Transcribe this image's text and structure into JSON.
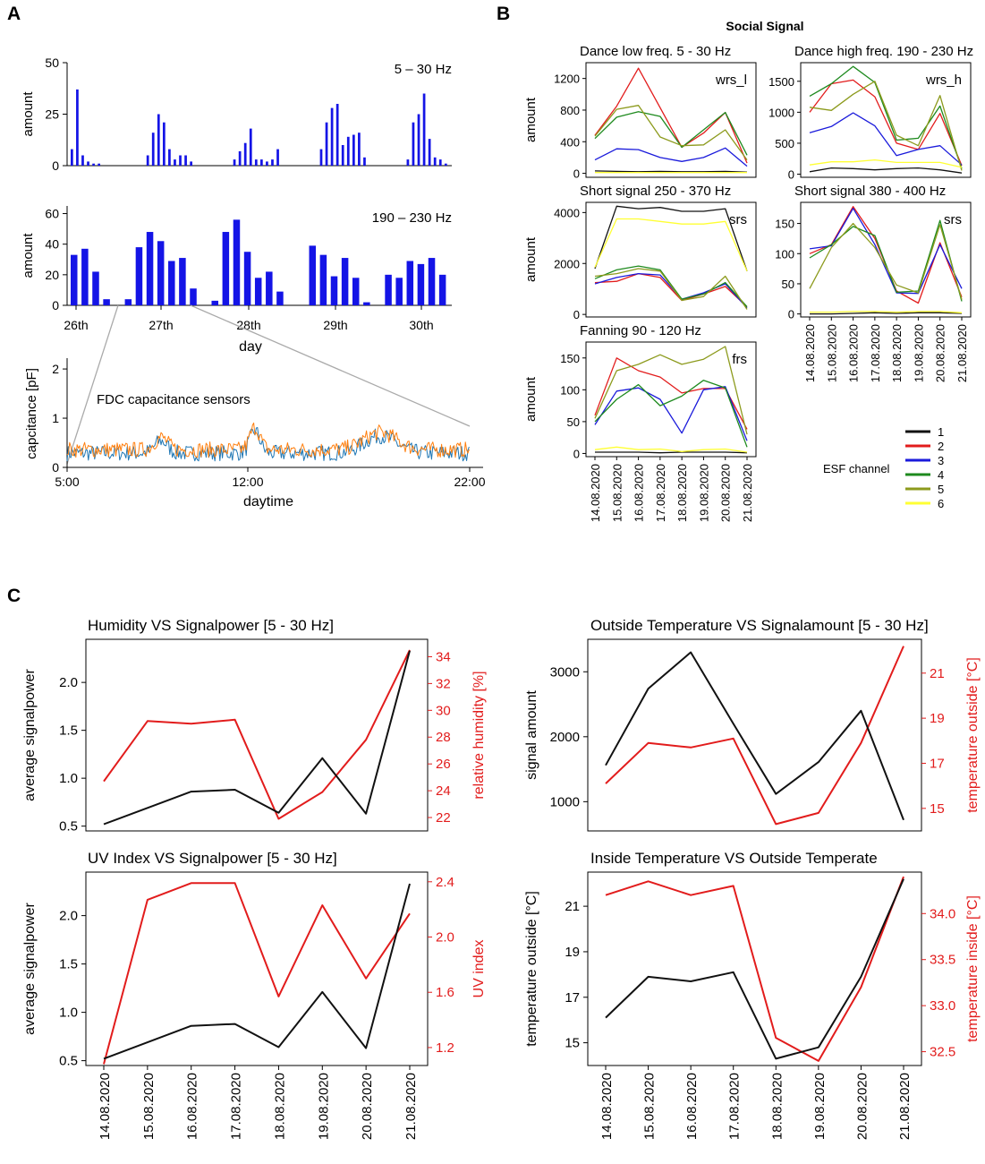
{
  "panel_labels": {
    "a": "A",
    "b": "B",
    "c": "C"
  },
  "colors": {
    "bar": "#1414e6",
    "sensor_blue": "#1f77b4",
    "sensor_orange": "#ff7f0e",
    "red": "#e21c1c",
    "black": "#111111",
    "grey": "#aaaaaa"
  },
  "chart_data": [
    {
      "id": "A1",
      "type": "bar",
      "title": "5 – 30 Hz",
      "ylabel": "amount",
      "ylim": [
        0,
        50
      ],
      "yticks": [
        "50",
        "25",
        "0"
      ],
      "values": [
        8,
        37,
        5,
        2,
        1,
        1,
        0,
        0,
        0,
        0,
        0,
        0,
        0,
        0,
        5,
        16,
        25,
        21,
        8,
        3,
        5,
        5,
        2,
        0,
        0,
        0,
        0,
        0,
        0,
        0,
        3,
        7,
        11,
        18,
        3,
        3,
        2,
        3,
        8,
        0,
        0,
        0,
        0,
        0,
        0,
        0,
        8,
        21,
        28,
        30,
        10,
        14,
        15,
        16,
        4,
        0,
        0,
        0,
        0,
        0,
        0,
        0,
        3,
        21,
        25,
        35,
        13,
        4,
        3,
        1
      ]
    },
    {
      "id": "A2",
      "type": "bar",
      "title": "190 – 230 Hz",
      "ylabel": "amount",
      "ylim": [
        0,
        65
      ],
      "yticks": [
        "60",
        "40",
        "20",
        "0"
      ],
      "x_ticks": [
        "26th",
        "27th",
        "28th",
        "29th",
        "30th"
      ],
      "xlabel": "day",
      "values": [
        33,
        37,
        22,
        4,
        0,
        4,
        38,
        48,
        42,
        29,
        31,
        11,
        0,
        3,
        48,
        56,
        35,
        18,
        22,
        9,
        0,
        0,
        39,
        33,
        19,
        31,
        18,
        2,
        0,
        20,
        18,
        29,
        27,
        31,
        20
      ]
    },
    {
      "id": "A3",
      "type": "line",
      "title": "FDC capacitance sensors",
      "ylabel": "capcitance [pF]",
      "xlabel": "daytime",
      "ylim": [
        0,
        2
      ],
      "yticks": [
        "2",
        "1",
        "0"
      ],
      "x_ticks": [
        "5:00",
        "12:00",
        "22:00"
      ]
    },
    {
      "id": "B",
      "type": "line",
      "title": "Social Signal",
      "dates": [
        "14.08.2020",
        "15.08.2020",
        "16.08.2020",
        "17.08.2020",
        "18.08.2020",
        "19.08.2020",
        "20.08.2020",
        "21.08.2020"
      ],
      "legend_title": "ESF channel",
      "legend": [
        {
          "name": "1",
          "color": "#111111"
        },
        {
          "name": "2",
          "color": "#e21c1c"
        },
        {
          "name": "3",
          "color": "#1a1adb"
        },
        {
          "name": "4",
          "color": "#1e8a1e"
        },
        {
          "name": "5",
          "color": "#8c9a1c"
        },
        {
          "name": "6",
          "color": "#ffff33"
        }
      ],
      "subplots": [
        {
          "title": "Dance low freq. 5 - 30 Hz",
          "tag": "wrs_l",
          "ylabel": "amount",
          "ylim": [
            -50,
            1400
          ],
          "yticks": [
            0,
            400,
            800,
            1200
          ],
          "series": [
            [
              30,
              25,
              20,
              25,
              20,
              20,
              25,
              15
            ],
            [
              480,
              850,
              1330,
              830,
              330,
              510,
              770,
              130
            ],
            [
              170,
              310,
              300,
              200,
              150,
              200,
              320,
              90
            ],
            [
              440,
              710,
              780,
              720,
              330,
              550,
              770,
              230
            ],
            [
              470,
              810,
              860,
              460,
              350,
              360,
              550,
              170
            ],
            [
              10,
              10,
              10,
              10,
              10,
              10,
              10,
              10
            ]
          ]
        },
        {
          "title": "Dance high freq. 190 - 230 Hz",
          "tag": "wrs_h",
          "ylabel": "",
          "ylim": [
            -50,
            1800
          ],
          "yticks": [
            0,
            500,
            1000,
            1500
          ],
          "series": [
            [
              40,
              100,
              90,
              70,
              90,
              100,
              70,
              20
            ],
            [
              1000,
              1460,
              1520,
              1250,
              500,
              400,
              980,
              140
            ],
            [
              670,
              770,
              990,
              780,
              300,
              400,
              460,
              150
            ],
            [
              1260,
              1460,
              1740,
              1480,
              550,
              580,
              1100,
              90
            ],
            [
              1080,
              1030,
              1290,
              1500,
              630,
              460,
              1270,
              60
            ],
            [
              150,
              200,
              200,
              230,
              190,
              190,
              190,
              110
            ]
          ]
        },
        {
          "title": "Short signal 250 - 370 Hz",
          "tag": "srs",
          "ylabel": "amount",
          "ylim": [
            -100,
            4400
          ],
          "yticks": [
            0,
            2000,
            4000
          ],
          "series": [
            [
              1800,
              4250,
              4150,
              4200,
              4050,
              4050,
              4150,
              1700
            ],
            [
              1250,
              1300,
              1600,
              1450,
              550,
              800,
              1100,
              300
            ],
            [
              1200,
              1450,
              1600,
              1550,
              600,
              850,
              1200,
              250
            ],
            [
              1400,
              1750,
              1900,
              1750,
              600,
              800,
              1250,
              300
            ],
            [
              1500,
              1600,
              1800,
              1700,
              550,
              700,
              1500,
              200
            ],
            [
              1850,
              3750,
              3750,
              3650,
              3550,
              3550,
              3650,
              1700
            ]
          ]
        },
        {
          "title": "Short signal 380 - 400 Hz",
          "tag": "srs",
          "ylabel": "",
          "ylim": [
            -5,
            185
          ],
          "yticks": [
            0,
            50,
            100,
            150
          ],
          "series": [
            [
              0,
              0,
              1,
              2,
              1,
              2,
              2,
              1
            ],
            [
              100,
              115,
              178,
              125,
              38,
              18,
              118,
              28
            ],
            [
              108,
              113,
              175,
              115,
              35,
              34,
              115,
              42
            ],
            [
              93,
              115,
              145,
              130,
              36,
              38,
              155,
              21
            ],
            [
              42,
              110,
              150,
              110,
              48,
              35,
              148,
              24
            ],
            [
              3,
              3,
              4,
              4,
              3,
              4,
              4,
              2
            ]
          ]
        },
        {
          "title": "Fanning 90 - 120 Hz",
          "tag": "frs",
          "ylabel": "amount",
          "ylim": [
            -5,
            175
          ],
          "yticks": [
            0,
            50,
            100,
            150
          ],
          "series": [
            [
              2,
              2,
              2,
              1,
              2,
              2,
              2,
              1
            ],
            [
              60,
              150,
              130,
              120,
              95,
              102,
              102,
              38
            ],
            [
              45,
              98,
              103,
              85,
              32,
              100,
              105,
              20
            ],
            [
              50,
              85,
              108,
              75,
              90,
              115,
              103,
              10
            ],
            [
              55,
              130,
              140,
              155,
              140,
              148,
              168,
              30
            ],
            [
              6,
              10,
              6,
              7,
              3,
              6,
              7,
              2
            ]
          ]
        }
      ]
    },
    {
      "id": "C1",
      "type": "line",
      "title": "Humidity VS Signalpower [5 - 30 Hz]",
      "ylabel": "average signalpower",
      "ylabel_right": "relative humidity [%]",
      "ylim": [
        0.45,
        2.45
      ],
      "yticks": [
        "0.5",
        "1.0",
        "1.5",
        "2.0"
      ],
      "ylim_right": [
        21,
        35.3
      ],
      "yticks_right": [
        "22",
        "24",
        "26",
        "28",
        "30",
        "32",
        "34"
      ],
      "left_series": [
        0.52,
        0.69,
        0.86,
        0.88,
        0.64,
        1.21,
        0.63,
        2.33
      ],
      "right_series": [
        24.7,
        29.2,
        29.0,
        29.3,
        21.9,
        23.9,
        27.8,
        34.5
      ]
    },
    {
      "id": "C2",
      "type": "line",
      "title": "Outside Temperature VS Signalamount [5 - 30 Hz]",
      "ylabel": "signal amount",
      "ylabel_right": "temperature outside [°C]",
      "ylim": [
        550,
        3500
      ],
      "yticks": [
        "1000",
        "2000",
        "3000"
      ],
      "ylim_right": [
        14,
        22.5
      ],
      "yticks_right": [
        "15",
        "17",
        "19",
        "21"
      ],
      "left_series": [
        1560,
        2740,
        3300,
        2200,
        1120,
        1610,
        2400,
        720
      ],
      "right_series": [
        16.1,
        17.9,
        17.7,
        18.1,
        14.3,
        14.8,
        17.9,
        22.2
      ]
    },
    {
      "id": "C3",
      "type": "line",
      "title": "UV Index VS Signalpower [5 - 30 Hz]",
      "ylabel": "average signalpower",
      "ylabel_right": "UV index",
      "ylim": [
        0.45,
        2.45
      ],
      "yticks": [
        "0.5",
        "1.0",
        "1.5",
        "2.0"
      ],
      "ylim_right": [
        1.07,
        2.47
      ],
      "yticks_right": [
        "1.2",
        "1.6",
        "2.0",
        "2.4"
      ],
      "left_series": [
        0.52,
        0.69,
        0.86,
        0.88,
        0.64,
        1.21,
        0.63,
        2.33
      ],
      "right_series": [
        1.08,
        2.27,
        2.39,
        2.39,
        1.57,
        2.23,
        1.7,
        2.17
      ],
      "dates": [
        "14.08.2020",
        "15.08.2020",
        "16.08.2020",
        "17.08.2020",
        "18.08.2020",
        "19.08.2020",
        "20.08.2020",
        "21.08.2020"
      ]
    },
    {
      "id": "C4",
      "type": "line",
      "title": "Inside Temperature VS Outside Temperate",
      "ylabel": "temperature outside [°C]",
      "ylabel_right": "temperature inside [°C]",
      "ylim": [
        14,
        22.5
      ],
      "yticks": [
        "15",
        "17",
        "19",
        "21"
      ],
      "ylim_right": [
        32.35,
        34.45
      ],
      "yticks_right": [
        "32.5",
        "33.0",
        "33.5",
        "34.0"
      ],
      "left_series": [
        16.1,
        17.9,
        17.7,
        18.1,
        14.3,
        14.8,
        17.9,
        22.2
      ],
      "right_series": [
        34.2,
        34.35,
        34.2,
        34.3,
        32.65,
        32.4,
        33.2,
        34.4
      ],
      "dates": [
        "14.08.2020",
        "15.08.2020",
        "16.08.2020",
        "17.08.2020",
        "18.08.2020",
        "19.08.2020",
        "20.08.2020",
        "21.08.2020"
      ]
    }
  ]
}
